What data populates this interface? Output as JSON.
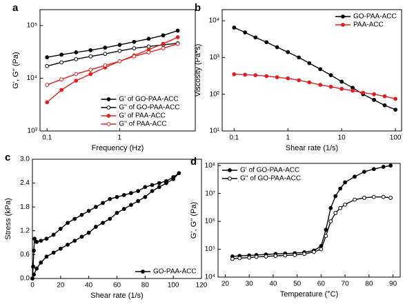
{
  "chart_data": [
    {
      "type": "line",
      "panel": "a",
      "xlabel": "Frequency (Hz)",
      "ylabel": "G', G'' (Pa)",
      "xlog": true,
      "ylog": true,
      "xlim": [
        0.08,
        11
      ],
      "ylim": [
        1000,
        200000
      ],
      "xticks": [
        0.1,
        1
      ],
      "yticks": [
        {
          "value": 1000,
          "label": "10³"
        },
        {
          "value": 10000,
          "label": "10⁴"
        },
        {
          "value": 100000,
          "label": "10⁵"
        }
      ],
      "legend": "lower right",
      "x": [
        0.1,
        0.158,
        0.251,
        0.398,
        0.631,
        1,
        1.58,
        2.51,
        3.98,
        6.31
      ],
      "series": [
        {
          "name": "G' of GO-PAA-ACC",
          "color": "#000000",
          "marker": "filled",
          "values": [
            25000,
            28000,
            31000,
            34000,
            38000,
            43000,
            49000,
            56000,
            65000,
            80000
          ]
        },
        {
          "name": "G'' of GO-PAA-ACC",
          "color": "#000000",
          "marker": "open",
          "values": [
            17000,
            20000,
            23000,
            26000,
            29000,
            33000,
            37000,
            40000,
            43000,
            46000
          ]
        },
        {
          "name": "G' of PAA-ACC",
          "color": "#e02020",
          "marker": "filled",
          "values": [
            3500,
            6000,
            9000,
            12000,
            16000,
            21000,
            27000,
            35000,
            45000,
            60000
          ]
        },
        {
          "name": "G'' of PAA-ACC",
          "color": "#e02020",
          "marker": "open",
          "values": [
            7500,
            9500,
            12000,
            14500,
            17500,
            21000,
            26000,
            31000,
            37000,
            45000
          ]
        }
      ]
    },
    {
      "type": "line",
      "panel": "b",
      "xlabel": "Shear rate (1/s)",
      "ylabel": "Viscosity (Pa*s)",
      "xlog": true,
      "ylog": true,
      "xlim": [
        0.06,
        130
      ],
      "ylim": [
        10,
        20000
      ],
      "xticks": [
        0.1,
        1,
        10,
        100
      ],
      "yticks": [
        {
          "value": 10,
          "label": "10¹"
        },
        {
          "value": 100,
          "label": "10²"
        },
        {
          "value": 1000,
          "label": "10³"
        },
        {
          "value": 10000,
          "label": "10⁴"
        }
      ],
      "legend": "upper right",
      "x": [
        0.1,
        0.16,
        0.25,
        0.4,
        0.63,
        1,
        1.6,
        2.5,
        4,
        6.3,
        10,
        16,
        25,
        40,
        63,
        100
      ],
      "series": [
        {
          "name": "GO-PAA-ACC",
          "color": "#000000",
          "marker": "filled",
          "values": [
            6500,
            4800,
            3500,
            2600,
            1900,
            1400,
            1000,
            700,
            480,
            330,
            220,
            150,
            100,
            70,
            50,
            38
          ]
        },
        {
          "name": "PAA-ACC",
          "color": "#e02020",
          "marker": "filled",
          "values": [
            350,
            340,
            330,
            310,
            290,
            270,
            240,
            210,
            180,
            160,
            140,
            125,
            110,
            100,
            88,
            75
          ]
        }
      ]
    },
    {
      "type": "line",
      "panel": "c",
      "xlabel": "Shear rate (1/s)",
      "ylabel": "Stress (kPa)",
      "xlog": false,
      "ylog": false,
      "xlim": [
        0,
        120
      ],
      "ylim": [
        0,
        3
      ],
      "xticks": [
        0,
        20,
        40,
        60,
        80,
        100,
        120
      ],
      "yticks": [
        {
          "value": 0,
          "label": "0.0"
        },
        0.6,
        1.2,
        1.8,
        2.4,
        {
          "value": 3,
          "label": "3.0"
        }
      ],
      "legend": "lower right",
      "x": [
        0,
        0.5,
        1,
        1.5,
        3,
        6,
        10,
        15,
        20,
        25,
        30,
        35,
        40,
        45,
        50,
        55,
        60,
        65,
        70,
        75,
        80,
        85,
        90,
        95,
        100,
        104,
        100,
        95,
        90,
        85,
        80,
        75,
        70,
        65,
        60,
        55,
        50,
        45,
        40,
        35,
        30,
        25,
        20,
        15,
        10,
        6,
        3,
        1,
        0
      ],
      "series": [
        {
          "name": "GO-PAA-ACC",
          "color": "#000000",
          "marker": "filled",
          "values": [
            0,
            0.3,
            0.7,
            1.0,
            0.92,
            0.95,
            1.0,
            1.1,
            1.25,
            1.4,
            1.5,
            1.6,
            1.7,
            1.8,
            1.9,
            2.0,
            2.05,
            2.1,
            2.15,
            2.2,
            2.3,
            2.35,
            2.4,
            2.45,
            2.55,
            2.65,
            2.5,
            2.4,
            2.3,
            2.2,
            2.05,
            1.95,
            1.85,
            1.75,
            1.65,
            1.5,
            1.4,
            1.3,
            1.15,
            1.05,
            0.95,
            0.85,
            0.75,
            0.65,
            0.55,
            0.4,
            0.25,
            0.1,
            0
          ]
        }
      ]
    },
    {
      "type": "line",
      "panel": "d",
      "xlabel": "Temperature (°C)",
      "ylabel": "G', G'' (Pa)",
      "xlog": false,
      "ylog": true,
      "xlim": [
        17,
        93
      ],
      "ylim": [
        10000,
        120000000
      ],
      "xticks": [
        20,
        30,
        40,
        50,
        60,
        70,
        80,
        90
      ],
      "yticks": [
        {
          "value": 10000,
          "label": "10⁴"
        },
        {
          "value": 100000,
          "label": "10⁵"
        },
        {
          "value": 1000000,
          "label": "10⁶"
        },
        {
          "value": 10000000,
          "label": "10⁷"
        },
        {
          "value": 100000000,
          "label": "10⁸"
        }
      ],
      "legend": "upper left",
      "x": [
        23,
        26,
        30,
        33,
        37,
        41,
        45,
        49,
        53,
        57,
        60,
        62,
        64,
        66,
        68,
        70,
        74,
        78,
        82,
        86,
        89
      ],
      "series": [
        {
          "name": "G' of GO-PAA-ACC",
          "color": "#000000",
          "marker": "filled",
          "values": [
            55000,
            58000,
            60000,
            62000,
            65000,
            68000,
            70000,
            72000,
            78000,
            90000,
            130000,
            500000,
            3000000,
            8000000,
            15000000,
            25000000,
            40000000,
            60000000,
            75000000,
            90000000,
            100000000
          ]
        },
        {
          "name": "G'' of GO-PAA-ACC",
          "color": "#000000",
          "marker": "open",
          "values": [
            45000,
            48000,
            50000,
            53000,
            55000,
            58000,
            60000,
            62000,
            68000,
            80000,
            100000,
            300000,
            1000000,
            2000000,
            3000000,
            4000000,
            6000000,
            7000000,
            7500000,
            7500000,
            7000000
          ]
        }
      ]
    }
  ]
}
